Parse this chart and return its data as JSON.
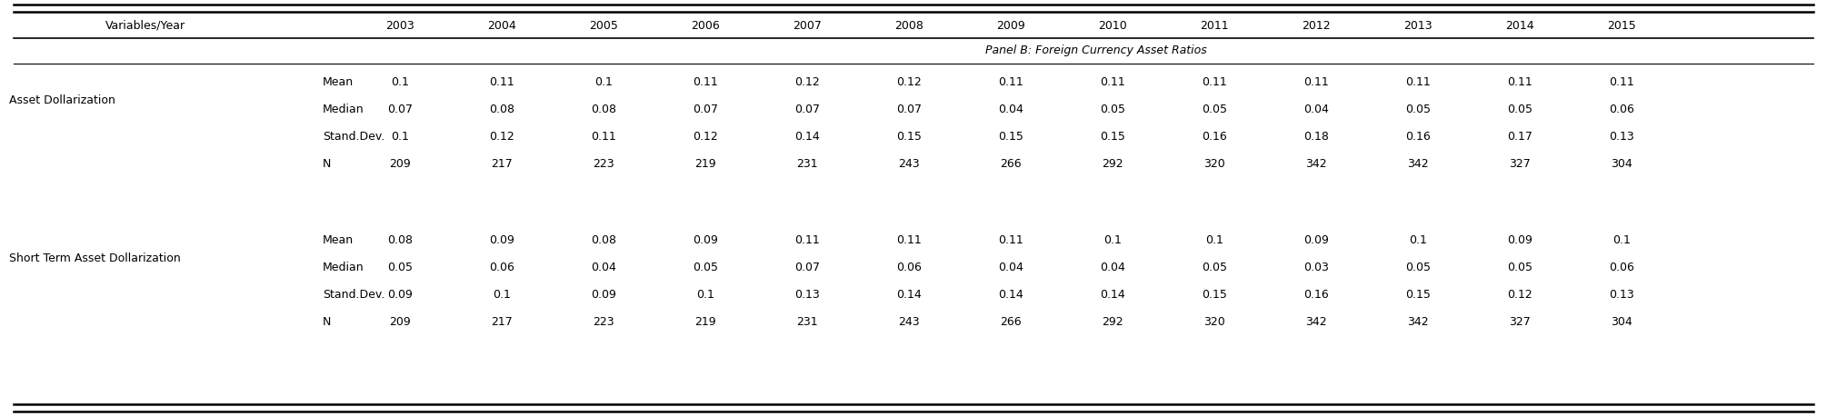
{
  "panel_label": "Panel B: Foreign Currency Asset Ratios",
  "years": [
    "2003",
    "2004",
    "2005",
    "2006",
    "2007",
    "2008",
    "2009",
    "2010",
    "2011",
    "2012",
    "2013",
    "2014",
    "2015"
  ],
  "sections": [
    {
      "name": "Asset Dollarization",
      "rows": [
        {
          "label": "Mean",
          "values": [
            "0.1",
            "0.11",
            "0.1",
            "0.11",
            "0.12",
            "0.12",
            "0.11",
            "0.11",
            "0.11",
            "0.11",
            "0.11",
            "0.11",
            "0.11"
          ]
        },
        {
          "label": "Median",
          "values": [
            "0.07",
            "0.08",
            "0.08",
            "0.07",
            "0.07",
            "0.07",
            "0.04",
            "0.05",
            "0.05",
            "0.04",
            "0.05",
            "0.05",
            "0.06"
          ]
        },
        {
          "label": "Stand.Dev.",
          "values": [
            "0.1",
            "0.12",
            "0.11",
            "0.12",
            "0.14",
            "0.15",
            "0.15",
            "0.15",
            "0.16",
            "0.18",
            "0.16",
            "0.17",
            "0.13"
          ]
        },
        {
          "label": "N",
          "values": [
            "209",
            "217",
            "223",
            "219",
            "231",
            "243",
            "266",
            "292",
            "320",
            "342",
            "342",
            "327",
            "304"
          ]
        }
      ]
    },
    {
      "name": "Short Term Asset Dollarization",
      "rows": [
        {
          "label": "Mean",
          "values": [
            "0.08",
            "0.09",
            "0.08",
            "0.09",
            "0.11",
            "0.11",
            "0.11",
            "0.1",
            "0.1",
            "0.09",
            "0.1",
            "0.09",
            "0.1"
          ]
        },
        {
          "label": "Median",
          "values": [
            "0.05",
            "0.06",
            "0.04",
            "0.05",
            "0.07",
            "0.06",
            "0.04",
            "0.04",
            "0.05",
            "0.03",
            "0.05",
            "0.05",
            "0.06"
          ]
        },
        {
          "label": "Stand.Dev.",
          "values": [
            "0.09",
            "0.1",
            "0.09",
            "0.1",
            "0.13",
            "0.14",
            "0.14",
            "0.14",
            "0.15",
            "0.16",
            "0.15",
            "0.12",
            "0.13"
          ]
        },
        {
          "label": "N",
          "values": [
            "209",
            "217",
            "223",
            "219",
            "231",
            "243",
            "266",
            "292",
            "320",
            "342",
            "342",
            "327",
            "304"
          ]
        }
      ]
    }
  ],
  "bg_color": "#ffffff",
  "text_color": "#000000",
  "font_size": 9.0,
  "line_color": "#000000"
}
